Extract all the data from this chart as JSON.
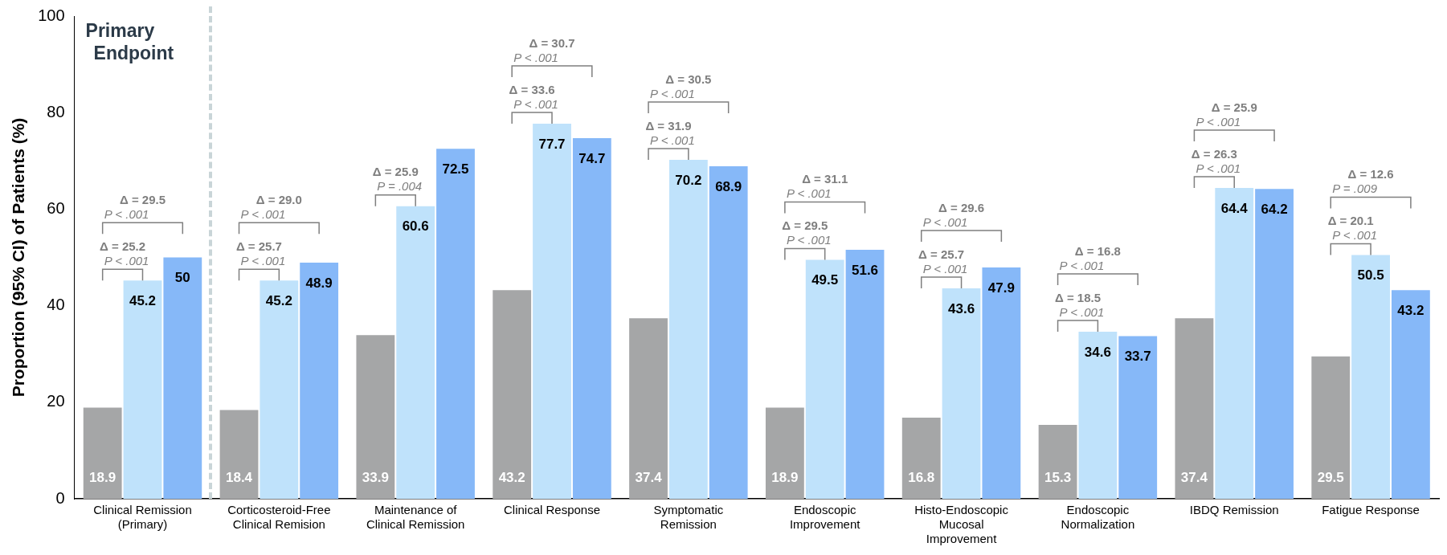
{
  "chart_data": {
    "type": "bar",
    "ylabel": "Proportion (95% CI) of Patients (%)",
    "categories": [
      "Clinical Remission\n(Primary)",
      "Corticosteroid-Free\nClinical Remision",
      "Maintenance of\nClinical Remission",
      "Clinical Response",
      "Symptomatic\nRemission",
      "Endoscopic\nImprovement",
      "Histo-Endoscopic\nMucosal\nImprovement",
      "Endoscopic\nNormalization",
      "IBDQ Remission",
      "Fatigue Response"
    ],
    "series": [
      {
        "color": "#a5a6a7",
        "values": [
          18.9,
          18.4,
          33.9,
          43.2,
          37.4,
          18.9,
          16.8,
          15.3,
          37.4,
          29.5
        ]
      },
      {
        "color": "#bfe2fb",
        "values": [
          45.2,
          45.2,
          60.6,
          77.7,
          70.2,
          49.5,
          43.6,
          34.6,
          64.4,
          50.5
        ]
      },
      {
        "color": "#86b8f8",
        "values": [
          50,
          48.9,
          72.5,
          74.7,
          68.9,
          51.6,
          47.9,
          33.7,
          64.2,
          43.2
        ]
      }
    ],
    "ylim": [
      0,
      100
    ],
    "yticks": [
      0,
      20,
      40,
      60,
      80,
      100
    ],
    "grid": false,
    "legend": false,
    "data_labels": true,
    "annotations": [
      "Primary\nEndpoint",
      {
        "text": "Δ = 25.2\nP < .001",
        "x": "Clinical Remission\n(Primary)",
        "y": 45.2
      },
      "Δ = 29.5\nP < .001",
      {
        "text": "Δ = 25.7\nP < .001",
        "x": "Corticosteroid-Free\nClinical Remision",
        "y": 45.2
      },
      "Δ = 29.0\nP < .001",
      {
        "text": "Δ = 25.9\nP = .004",
        "x": "Maintenance of\nClinical Remission",
        "y": 60.6
      },
      {
        "text": "Δ = 33.6\nP < .001",
        "x": "Clinical Response",
        "y": 77.7
      },
      "Δ = 30.7\nP < .001",
      {
        "text": "Δ = 31.9\nP < .001",
        "x": "Symptomatic\nRemission",
        "y": 70.2
      },
      "Δ = 30.5\nP < .001",
      {
        "text": "Δ = 29.5\nP < .001",
        "x": "Endoscopic\nImprovement",
        "y": 49.5
      },
      "Δ = 31.1\nP < .001",
      {
        "text": "Δ = 25.7\nP < .001",
        "x": "Histo-Endoscopic\nMucosal\nImprovement",
        "y": 43.6
      },
      "Δ = 29.6\nP < .001",
      {
        "text": "Δ = 18.5\nP < .001",
        "x": "Endoscopic\nNormalization",
        "y": 34.6
      },
      "Δ = 16.8\nP < .001",
      {
        "text": "Δ = 26.3\nP < .001",
        "x": "IBDQ Remission",
        "y": 64.4
      },
      "Δ = 25.9\nP < .001",
      {
        "text": "Δ = 20.1\nP < .001",
        "x": "Fatigue Response",
        "y": 50.5
      },
      "Δ = 12.6\nP = .009"
    ]
  }
}
